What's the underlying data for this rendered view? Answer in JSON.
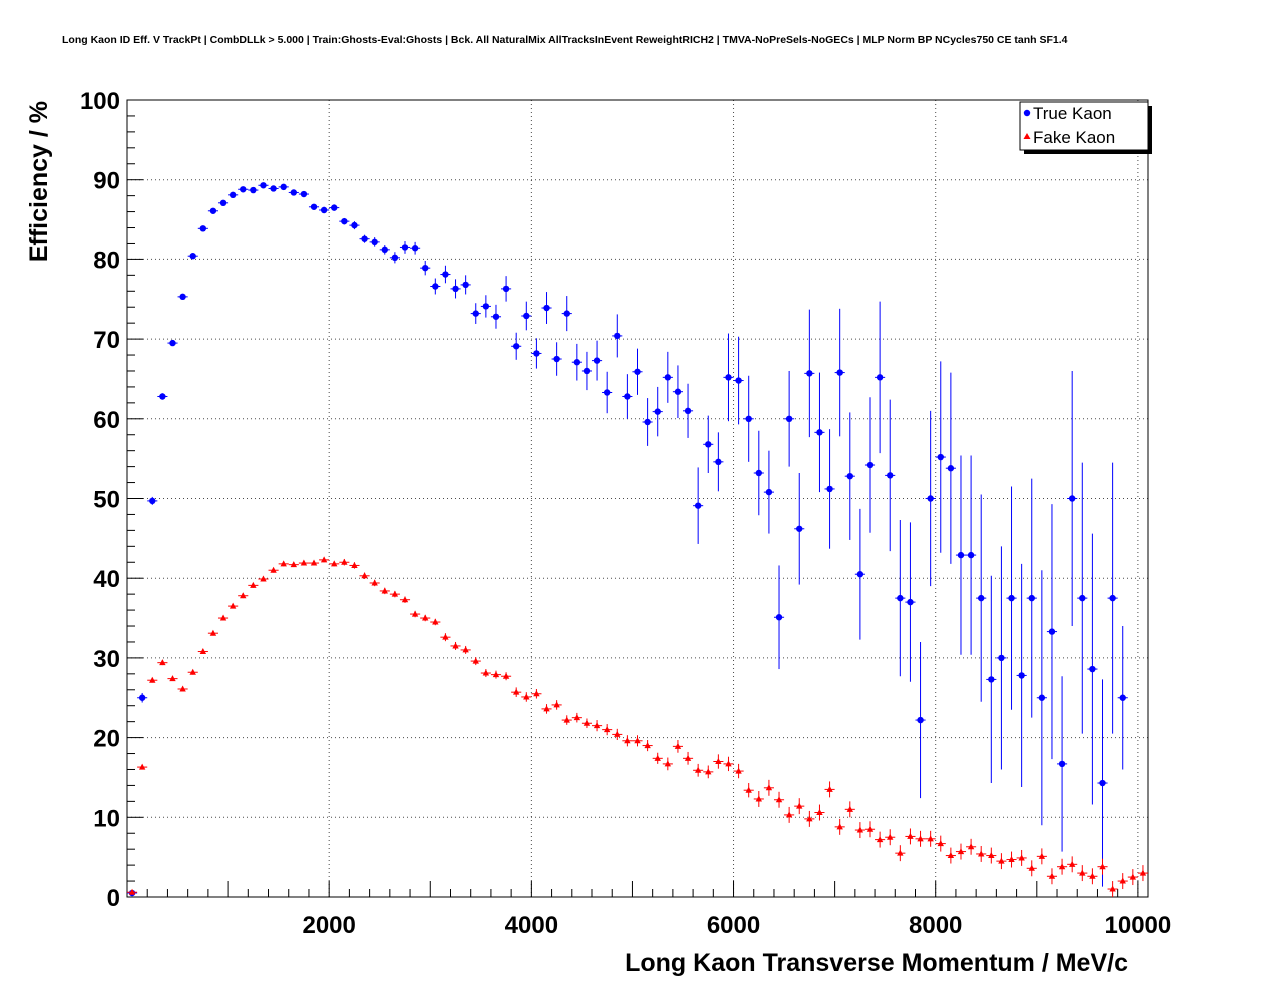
{
  "chart_data": {
    "type": "scatter",
    "title": "Long Kaon ID Eff. V TrackPt | CombDLLk > 5.000 | Train:Ghosts-Eval:Ghosts | Bck. All NaturalMix AllTracksInEvent ReweightRICH2 | TMVA-NoPreSels-NoGECs | MLP Norm BP NCycles750 CE tanh SF1.4",
    "xlabel": "Long Kaon Transverse Momentum / MeV/c",
    "ylabel": "Efficiency / %",
    "xlim": [
      0,
      10100
    ],
    "ylim": [
      0,
      100
    ],
    "xticks": [
      2000,
      4000,
      6000,
      8000,
      10000
    ],
    "yticks": [
      0,
      10,
      20,
      30,
      40,
      50,
      60,
      70,
      80,
      90,
      100
    ],
    "grid": true,
    "legend_position": "top-right",
    "x": [
      50,
      150,
      250,
      350,
      450,
      550,
      650,
      750,
      850,
      950,
      1050,
      1150,
      1250,
      1350,
      1450,
      1550,
      1650,
      1750,
      1850,
      1950,
      2050,
      2150,
      2250,
      2350,
      2450,
      2550,
      2650,
      2750,
      2850,
      2950,
      3050,
      3150,
      3250,
      3350,
      3450,
      3550,
      3650,
      3750,
      3850,
      3950,
      4050,
      4150,
      4250,
      4350,
      4450,
      4550,
      4650,
      4750,
      4850,
      4950,
      5050,
      5150,
      5250,
      5350,
      5450,
      5550,
      5650,
      5750,
      5850,
      5950,
      6050,
      6150,
      6250,
      6350,
      6450,
      6550,
      6650,
      6750,
      6850,
      6950,
      7050,
      7150,
      7250,
      7350,
      7450,
      7550,
      7650,
      7750,
      7850,
      7950,
      8050,
      8150,
      8250,
      8350,
      8450,
      8550,
      8650,
      8750,
      8850,
      8950,
      9050,
      9150,
      9250,
      9350,
      9450,
      9550,
      9650,
      9750,
      9850,
      9950,
      10050
    ],
    "series": [
      {
        "name": "True Kaon",
        "color": "#0000ff",
        "marker": "circle",
        "values": [
          0.5,
          25.0,
          49.7,
          62.8,
          69.5,
          75.3,
          80.4,
          83.9,
          86.1,
          87.1,
          88.1,
          88.8,
          88.7,
          89.3,
          88.9,
          89.1,
          88.4,
          88.2,
          86.6,
          86.2,
          86.5,
          84.8,
          84.3,
          82.6,
          82.2,
          81.2,
          80.2,
          81.5,
          81.4,
          78.9,
          76.6,
          78.1,
          76.3,
          76.8,
          73.2,
          74.1,
          72.8,
          76.3,
          69.1,
          72.9,
          68.2,
          73.9,
          67.5,
          73.2,
          67.1,
          66.0,
          67.3,
          63.3,
          70.4,
          62.8,
          65.9,
          59.6,
          60.9,
          65.2,
          63.4,
          61.0,
          49.1,
          56.8,
          54.6,
          65.2,
          64.8,
          60.0,
          53.2,
          50.8,
          35.1,
          60.0,
          46.2,
          65.7,
          58.3,
          51.2,
          65.8,
          52.8,
          40.5,
          54.2,
          65.2,
          52.9,
          37.5,
          37.0,
          22.2,
          50.0,
          55.2,
          53.8,
          42.9,
          42.9,
          37.5,
          27.3,
          30.0,
          37.5,
          27.8,
          37.5,
          25.0,
          33.3,
          16.7,
          50.0,
          37.5,
          28.6,
          14.3,
          37.5,
          25.0
        ],
        "errors": [
          0.3,
          0.6,
          0.5,
          0.4,
          0.3,
          0.3,
          0.3,
          0.3,
          0.3,
          0.3,
          0.3,
          0.3,
          0.3,
          0.3,
          0.3,
          0.3,
          0.3,
          0.3,
          0.3,
          0.4,
          0.4,
          0.4,
          0.5,
          0.5,
          0.6,
          0.6,
          0.7,
          0.8,
          0.8,
          0.9,
          1.0,
          1.1,
          1.2,
          1.2,
          1.3,
          1.4,
          1.5,
          1.6,
          1.7,
          1.8,
          1.9,
          2.0,
          2.1,
          2.2,
          2.3,
          2.4,
          2.5,
          2.6,
          2.7,
          2.8,
          2.9,
          3.0,
          3.1,
          3.2,
          3.3,
          3.4,
          4.8,
          3.6,
          3.7,
          5.5,
          5.5,
          5.4,
          5.3,
          5.2,
          6.5,
          6.0,
          7.0,
          8.0,
          7.5,
          7.5,
          8.0,
          8.0,
          8.2,
          8.5,
          9.5,
          9.5,
          9.8,
          10.0,
          9.8,
          11.0,
          12.0,
          12.0,
          12.5,
          12.5,
          13.0,
          13.0,
          14.0,
          14.0,
          14.0,
          15.0,
          16.0,
          16.0,
          11.0,
          16.0,
          17.0,
          17.0,
          13.0,
          17.0,
          9.0,
          9.0,
          9.0
        ]
      },
      {
        "name": "Fake Kaon",
        "color": "#ff0000",
        "marker": "triangle",
        "values": [
          0.6,
          16.3,
          27.2,
          29.4,
          27.4,
          26.1,
          28.2,
          30.8,
          33.1,
          35.0,
          36.5,
          37.8,
          39.1,
          39.9,
          41.0,
          41.8,
          41.7,
          41.9,
          41.9,
          42.3,
          41.8,
          42.0,
          41.6,
          40.3,
          39.4,
          38.4,
          38.0,
          37.3,
          35.5,
          35.0,
          34.5,
          32.6,
          31.5,
          31.0,
          29.6,
          28.1,
          27.9,
          27.7,
          25.7,
          25.1,
          25.5,
          23.6,
          24.1,
          22.2,
          22.5,
          21.8,
          21.5,
          21.0,
          20.4,
          19.6,
          19.6,
          19.0,
          17.4,
          16.7,
          18.9,
          17.4,
          15.9,
          15.7,
          17.0,
          16.7,
          15.8,
          13.4,
          12.3,
          13.7,
          12.2,
          10.3,
          11.4,
          9.8,
          10.6,
          13.5,
          8.8,
          11.0,
          8.4,
          8.5,
          7.2,
          7.5,
          5.5,
          7.6,
          7.3,
          7.3,
          6.7,
          5.2,
          5.7,
          6.3,
          5.4,
          5.2,
          4.5,
          4.7,
          4.9,
          3.6,
          5.1,
          2.6,
          3.8,
          4.1,
          3.0,
          2.6,
          3.8,
          1.0,
          2.0,
          2.5,
          3.0
        ],
        "errors": [
          0.1,
          0.3,
          0.3,
          0.3,
          0.3,
          0.3,
          0.3,
          0.3,
          0.3,
          0.3,
          0.3,
          0.3,
          0.3,
          0.3,
          0.3,
          0.3,
          0.3,
          0.3,
          0.3,
          0.3,
          0.3,
          0.4,
          0.4,
          0.4,
          0.4,
          0.4,
          0.4,
          0.4,
          0.4,
          0.4,
          0.4,
          0.5,
          0.5,
          0.5,
          0.5,
          0.5,
          0.5,
          0.5,
          0.6,
          0.6,
          0.6,
          0.6,
          0.6,
          0.6,
          0.6,
          0.6,
          0.7,
          0.7,
          0.7,
          0.7,
          0.7,
          0.7,
          0.7,
          0.8,
          0.8,
          0.8,
          0.8,
          0.8,
          0.9,
          0.9,
          0.9,
          0.9,
          1.0,
          1.0,
          1.0,
          1.0,
          1.0,
          1.0,
          1.0,
          1.0,
          1.0,
          1.0,
          1.0,
          1.0,
          1.0,
          1.0,
          1.0,
          1.0,
          1.0,
          1.0,
          1.0,
          1.0,
          1.0,
          1.0,
          1.0,
          1.0,
          1.0,
          1.0,
          1.0,
          1.0,
          1.0,
          1.0,
          1.0,
          1.0,
          1.0,
          1.0,
          1.0,
          1.0,
          1.0,
          1.0,
          1.0
        ]
      }
    ]
  }
}
